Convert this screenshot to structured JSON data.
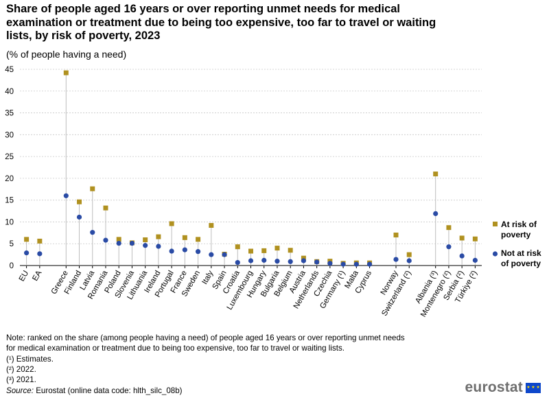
{
  "header": {
    "title": "Share of people aged 16 years or over reporting unmet needs for medical examination or treatment due to being too expensive, too far to travel or waiting lists, by risk of poverty, 2023",
    "subtitle": "(% of people having a need)"
  },
  "chart_data": {
    "type": "scatter",
    "title": "Share of people aged 16 years or over reporting unmet needs for medical examination or treatment due to being too expensive, too far to travel or waiting lists, by risk of poverty, 2023",
    "ylabel": "% of people having a need",
    "ylim": [
      0,
      45
    ],
    "yticks": [
      0,
      5,
      10,
      15,
      20,
      25,
      30,
      35,
      40,
      45
    ],
    "grid": true,
    "legend_position": "right",
    "categories": [
      "EU",
      "EA",
      "",
      "Greece",
      "Finland",
      "Latvia",
      "Romania",
      "Poland",
      "Slovenia",
      "Lithuania",
      "Ireland",
      "Portugal",
      "France",
      "Sweden",
      "Italy",
      "Spain",
      "Croatia",
      "Luxembourg",
      "Hungary",
      "Bulgaria",
      "Belgium",
      "Austria",
      "Netherlands",
      "Czechia",
      "Germany (¹)",
      "Malta",
      "Cyprus",
      "",
      "Norway",
      "Switzerland (²)",
      "",
      "Albania (³)",
      "Montenegro (²)",
      "Serbia (²)",
      "Türkiye (²)"
    ],
    "series": [
      {
        "name": "At risk of poverty",
        "color": "#b09120",
        "marker": "square",
        "values": [
          6.0,
          5.6,
          null,
          44.2,
          14.6,
          17.6,
          13.2,
          6.0,
          5.2,
          5.9,
          6.6,
          9.6,
          6.4,
          6.0,
          9.2,
          2.6,
          4.3,
          3.3,
          3.4,
          4.0,
          3.5,
          1.7,
          0.9,
          1.0,
          0.5,
          0.6,
          0.6,
          null,
          7.0,
          2.5,
          null,
          21.0,
          8.7,
          6.3,
          6.1
        ]
      },
      {
        "name": "Not at risk of poverty",
        "color": "#2a4ba5",
        "marker": "circle",
        "values": [
          2.9,
          2.7,
          null,
          16.0,
          11.1,
          7.6,
          5.8,
          5.1,
          5.1,
          4.6,
          4.4,
          3.3,
          3.6,
          3.2,
          2.5,
          2.5,
          0.7,
          1.1,
          1.2,
          1.0,
          0.9,
          1.1,
          0.8,
          0.5,
          0.3,
          0.3,
          0.3,
          null,
          1.4,
          1.1,
          null,
          11.9,
          4.3,
          2.2,
          1.2
        ]
      }
    ]
  },
  "legend": {
    "items": [
      {
        "label_line1": "At risk of",
        "label_line2": "poverty",
        "color": "#b09120"
      },
      {
        "label_line1": "Not at risk",
        "label_line2": "of poverty",
        "color": "#2a4ba5"
      }
    ]
  },
  "footer": {
    "note_line1": "Note: ranked on the share (among people having a need) of people aged 16 years or over reporting unmet needs",
    "note_line2": "for medical examination or treatment due to being too expensive, too far to travel or waiting lists.",
    "fn1": "(¹) Estimates.",
    "fn2": "(²) 2022.",
    "fn3": "(³) 2021.",
    "source_label": "Source:",
    "source_text": " Eurostat (online data code: hlth_silc_08b)"
  },
  "brand": {
    "name": "eurostat"
  }
}
